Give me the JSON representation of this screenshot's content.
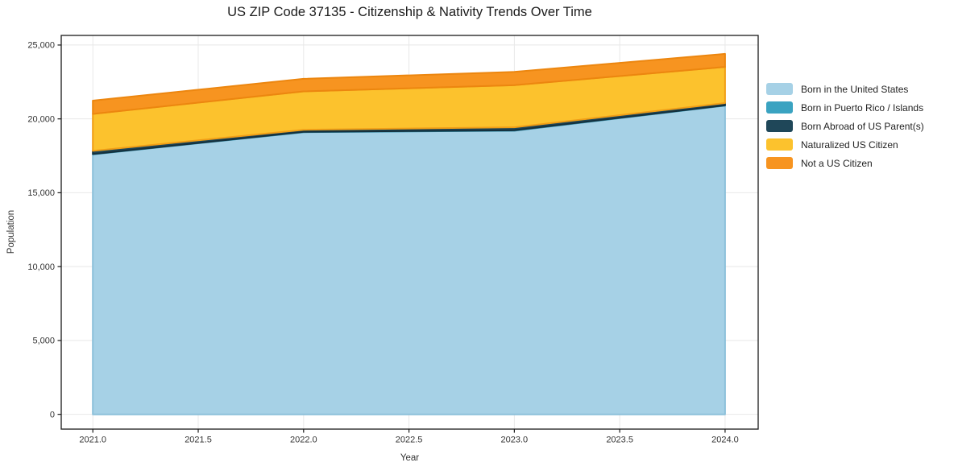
{
  "title": "US ZIP Code 37135 - Citizenship & Nativity Trends Over Time",
  "colors": {
    "background": "#ffffff",
    "grid": "#e8e8e8",
    "spine": "#1a1a1a",
    "tick": "#1a1a1a",
    "tick_label": "#333333",
    "title": "#1b1b1b"
  },
  "chart_data": {
    "type": "area",
    "stacked": true,
    "title": "US ZIP Code 37135 - Citizenship & Nativity Trends Over Time",
    "xlabel": "Year",
    "ylabel": "Population",
    "x": [
      2021,
      2022,
      2023,
      2024
    ],
    "series": [
      {
        "name": "Born in the United States",
        "color": "#a6d1e6",
        "edge": "#8cc0da",
        "values": [
          17600,
          19100,
          19200,
          20900
        ]
      },
      {
        "name": "Born in Puerto Rico / Islands",
        "color": "#3aa3c1",
        "edge": "#2d89a4",
        "values": [
          25,
          20,
          30,
          20
        ]
      },
      {
        "name": "Born Abroad of US Parent(s)",
        "color": "#1f4759",
        "edge": "#14303d",
        "values": [
          210,
          140,
          200,
          150
        ]
      },
      {
        "name": "Naturalized US Citizen",
        "color": "#fcc22d",
        "edge": "#f09e16",
        "values": [
          2500,
          2600,
          2850,
          2450
        ]
      },
      {
        "name": "Not a US Citizen",
        "color": "#f79420",
        "edge": "#ec860f",
        "values": [
          900,
          850,
          900,
          880
        ]
      }
    ],
    "totals": [
      21235,
      22710,
      23180,
      24400
    ],
    "x_ticks": [
      "2021.0",
      "2021.5",
      "2022.0",
      "2022.5",
      "2023.0",
      "2023.5",
      "2024.0"
    ],
    "x_tick_values": [
      2021,
      2021.5,
      2022,
      2022.5,
      2023,
      2023.5,
      2024
    ],
    "y_ticks": [
      "0",
      "5,000",
      "10,000",
      "15,000",
      "20,000",
      "25,000"
    ],
    "y_tick_values": [
      0,
      5000,
      10000,
      15000,
      20000,
      25000
    ],
    "xlim": [
      2020.85,
      2024.157
    ],
    "ylim": [
      -1000,
      25650
    ],
    "grid": true,
    "legend_position": "right"
  }
}
